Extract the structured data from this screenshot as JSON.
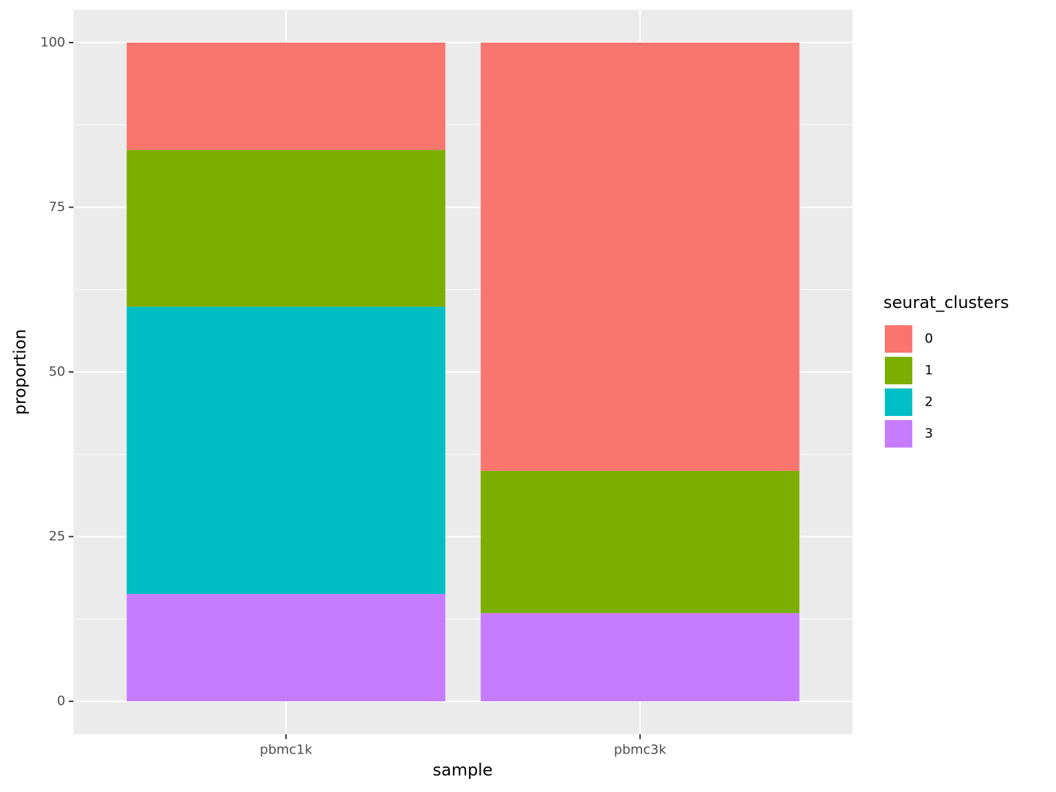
{
  "chart_data": {
    "type": "stacked_bar",
    "x_label": "sample",
    "y_label": "proportion",
    "categories": [
      "pbmc1k",
      "pbmc3k"
    ],
    "legend_title": "seurat_clusters",
    "series": [
      {
        "name": "0",
        "color": "#F8766D",
        "values": [
          16.3,
          65.0
        ]
      },
      {
        "name": "1",
        "color": "#7CAE00",
        "values": [
          23.8,
          21.6
        ]
      },
      {
        "name": "2",
        "color": "#00BFC4",
        "values": [
          43.6,
          0
        ]
      },
      {
        "name": "3",
        "color": "#C77CFF",
        "values": [
          16.3,
          13.4
        ]
      }
    ],
    "ylim": [
      -5,
      105
    ],
    "yticks": [
      0,
      25,
      50,
      75,
      100
    ],
    "grid": true,
    "legend": "right"
  }
}
